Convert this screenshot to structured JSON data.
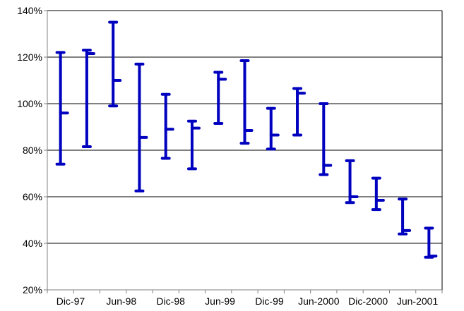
{
  "chart_data": {
    "type": "high-low-close",
    "title": "",
    "xlabel": "",
    "ylabel": "",
    "ylim": [
      20,
      140
    ],
    "y_ticks": [
      20,
      40,
      60,
      80,
      100,
      120,
      140
    ],
    "y_tick_labels": [
      "20%",
      "40%",
      "60%",
      "80%",
      "100%",
      "120%",
      "140%"
    ],
    "x_tick_labels": [
      "Dic-97",
      "Jun-98",
      "Dic-98",
      "Jun-99",
      "Dic-99",
      "Jun-2000",
      "Dic-2000",
      "Jun-2001"
    ],
    "grid": true,
    "legend": "none",
    "color": "#0000bf",
    "series": [
      {
        "high": 122,
        "low": 74,
        "close": 96
      },
      {
        "high": 123,
        "low": 81.5,
        "close": 121.5
      },
      {
        "high": 135,
        "low": 99,
        "close": 110
      },
      {
        "high": 117,
        "low": 62.5,
        "close": 85.5
      },
      {
        "high": 104,
        "low": 76.5,
        "close": 89
      },
      {
        "high": 92.5,
        "low": 72,
        "close": 89.5
      },
      {
        "high": 113.5,
        "low": 91.5,
        "close": 110.5
      },
      {
        "high": 118.5,
        "low": 83,
        "close": 88.5
      },
      {
        "high": 98,
        "low": 80.5,
        "close": 86.5
      },
      {
        "high": 106.5,
        "low": 86.5,
        "close": 104.5
      },
      {
        "high": 100,
        "low": 69.5,
        "close": 73.5
      },
      {
        "high": 75.5,
        "low": 57.5,
        "close": 60
      },
      {
        "high": 68,
        "low": 54.5,
        "close": 58.5
      },
      {
        "high": 59,
        "low": 44,
        "close": 45.5
      },
      {
        "high": 46.5,
        "low": 34,
        "close": 34.5
      }
    ]
  }
}
